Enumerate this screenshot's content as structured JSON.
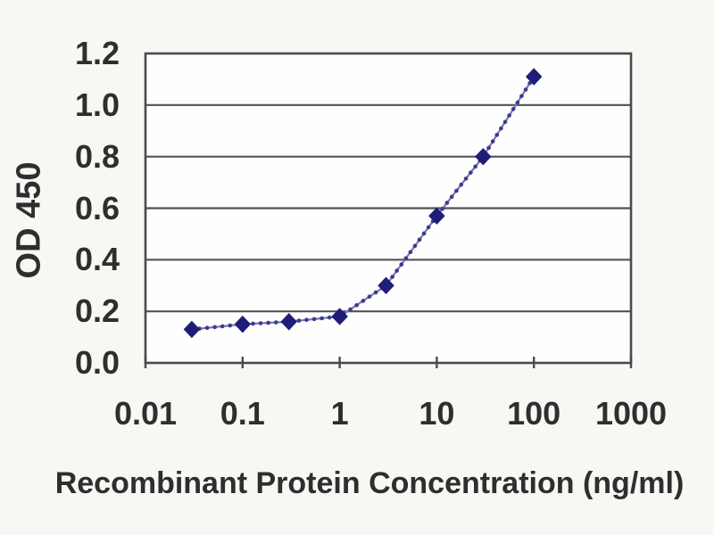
{
  "figure": {
    "background_color": "#f7f7f4",
    "plot_background_color": "#fefefe",
    "axis_color": "#4a4a4a",
    "grid_color": "#525252",
    "text_color": "#2e2e2e"
  },
  "chart_data": {
    "type": "line",
    "title": "",
    "xlabel": "Recombinant Protein Concentration (ng/ml)",
    "ylabel": "OD 450",
    "x_scale": "log",
    "xlim": [
      0.01,
      1000
    ],
    "ylim": [
      0.0,
      1.2
    ],
    "x_ticks": [
      0.01,
      0.1,
      1,
      10,
      100,
      1000
    ],
    "x_tick_labels": [
      "0.01",
      "0.1",
      "1",
      "10",
      "100",
      "1000"
    ],
    "y_ticks": [
      0.0,
      0.2,
      0.4,
      0.6,
      0.8,
      1.0,
      1.2
    ],
    "y_tick_labels": [
      "0.0",
      "0.2",
      "0.4",
      "0.6",
      "0.8",
      "1.0",
      "1.2"
    ],
    "grid": "horizontal-only",
    "legend_position": "none",
    "series": [
      {
        "name": "OD 450",
        "marker": "diamond",
        "line_color": "#7878b4",
        "bead_color": "#3c3c8f",
        "marker_color": "#1e1e78",
        "x": [
          0.03,
          0.1,
          0.3,
          1,
          3,
          10,
          30,
          100
        ],
        "y": [
          0.13,
          0.15,
          0.16,
          0.18,
          0.3,
          0.57,
          0.8,
          1.11
        ]
      }
    ]
  }
}
